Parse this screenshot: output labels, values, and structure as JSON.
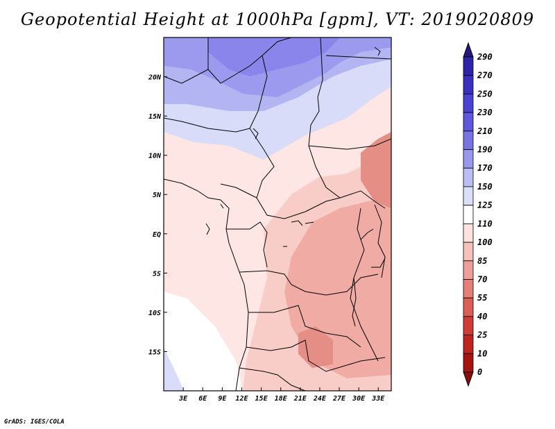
{
  "title": "Geopotential Height at 1000hPa [gpm], VT: 2019020809",
  "credit": "GrADS: IGES/COLA",
  "map": {
    "lat_range": [
      -20,
      25
    ],
    "lon_range": [
      0,
      35
    ],
    "lat_ticks": [
      {
        "value": 20,
        "label": "20N"
      },
      {
        "value": 15,
        "label": "15N"
      },
      {
        "value": 10,
        "label": "10N"
      },
      {
        "value": 5,
        "label": "5N"
      },
      {
        "value": 0,
        "label": "EQ"
      },
      {
        "value": -5,
        "label": "5S"
      },
      {
        "value": -10,
        "label": "10S"
      },
      {
        "value": -15,
        "label": "15S"
      }
    ],
    "lon_ticks": [
      {
        "value": 3,
        "label": "3E"
      },
      {
        "value": 6,
        "label": "6E"
      },
      {
        "value": 9,
        "label": "9E"
      },
      {
        "value": 12,
        "label": "12E"
      },
      {
        "value": 15,
        "label": "15E"
      },
      {
        "value": 18,
        "label": "18E"
      },
      {
        "value": 21,
        "label": "21E"
      },
      {
        "value": 24,
        "label": "24E"
      },
      {
        "value": 27,
        "label": "27E"
      },
      {
        "value": 30,
        "label": "30E"
      },
      {
        "value": 33,
        "label": "33E"
      }
    ]
  },
  "colorbar": {
    "levels": [
      "290",
      "270",
      "250",
      "230",
      "210",
      "190",
      "170",
      "150",
      "125",
      "110",
      "100",
      "85",
      "70",
      "55",
      "40",
      "25",
      "10",
      "0"
    ],
    "colors": [
      "#241878",
      "#2f23a8",
      "#3a30c0",
      "#4a42d2",
      "#5d58dc",
      "#7874e4",
      "#9a98ec",
      "#bcbdf4",
      "#dcdff9",
      "#ffffff",
      "#fde3e0",
      "#f6c1bb",
      "#ee9f98",
      "#e57f78",
      "#db5e57",
      "#cf3c36",
      "#be2420",
      "#a61412",
      "#8a0c0a"
    ]
  },
  "field_colors": {
    "c150": "#b3b4f2",
    "c170": "#9c9aee",
    "c190": "#8985ea",
    "c125": "#d9dcf9",
    "c110": "#ffffff",
    "c100": "#fde6e3",
    "c85": "#f8ccc7",
    "c70": "#f0aba4",
    "c55": "#e48e86"
  }
}
